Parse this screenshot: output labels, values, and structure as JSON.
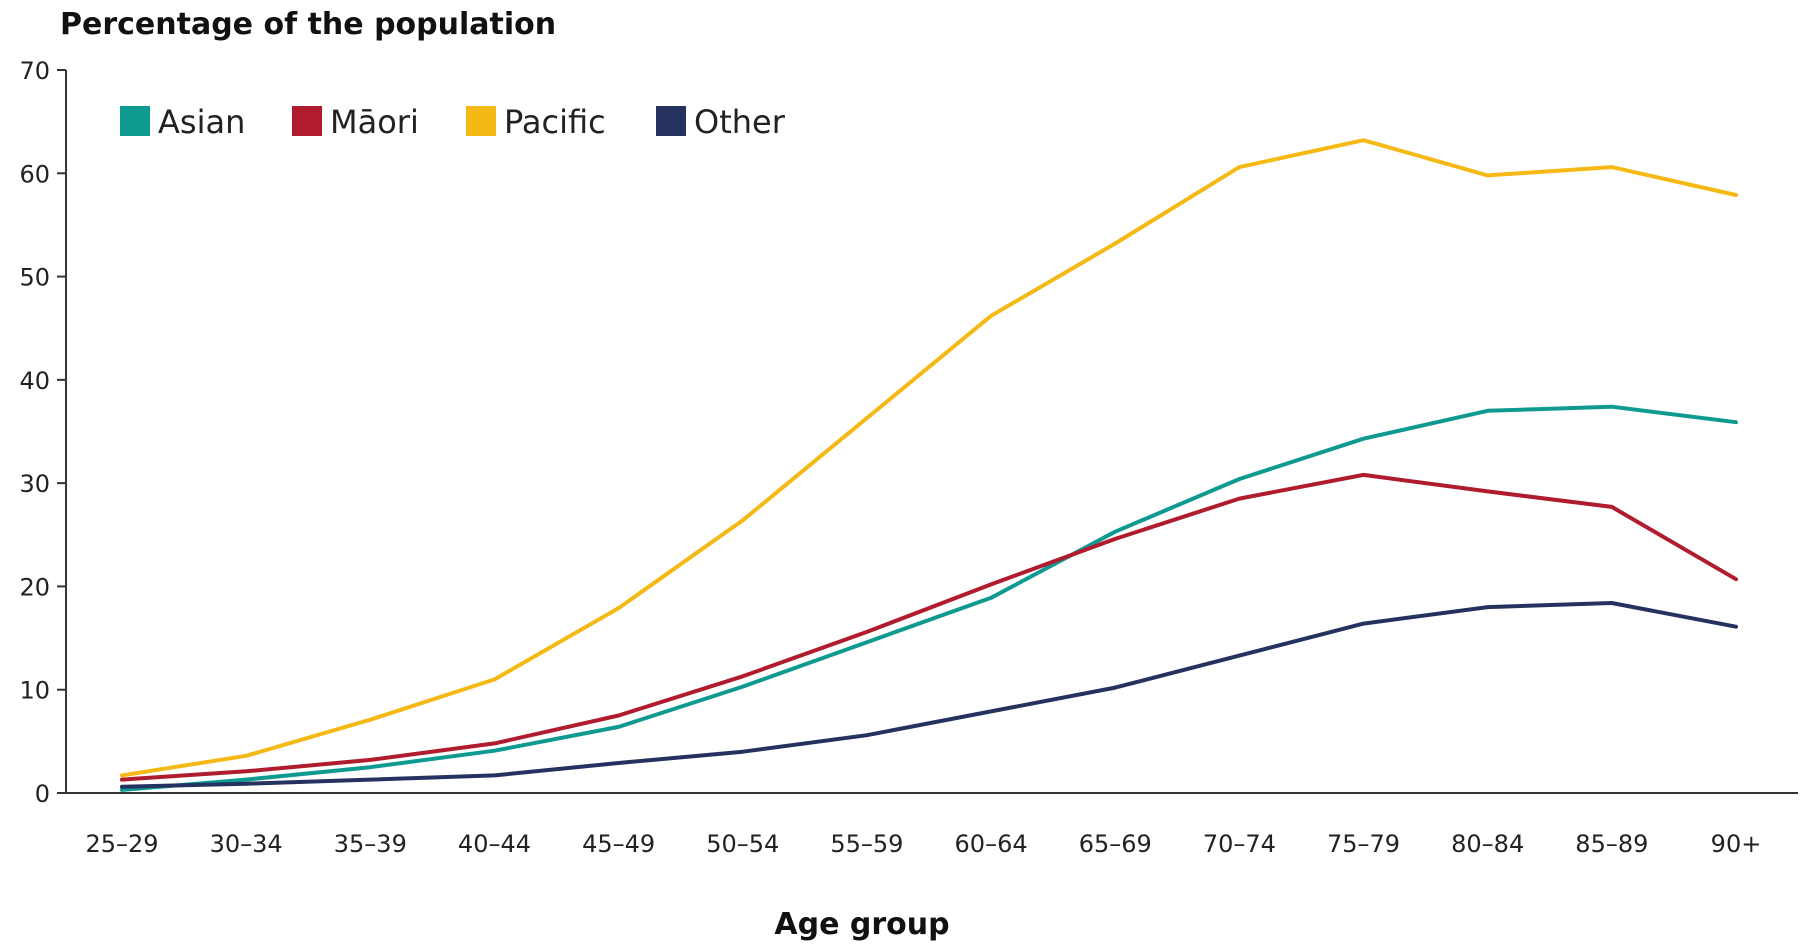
{
  "chart_data": {
    "type": "line",
    "ylabel": "Percentage of the population",
    "xlabel": "Age group",
    "ylim": [
      0,
      70
    ],
    "yticks": [
      0,
      10,
      20,
      30,
      40,
      50,
      60,
      70
    ],
    "grid": false,
    "legend_position": "top-left",
    "categories": [
      "25–29",
      "30–34",
      "35–39",
      "40–44",
      "45–49",
      "50–54",
      "55–59",
      "60–64",
      "65–69",
      "70–74",
      "75–79",
      "80–84",
      "85–89",
      "90+"
    ],
    "series": [
      {
        "name": "Asian",
        "color": "#0f9a91",
        "values": [
          0.3,
          1.3,
          2.5,
          4.1,
          6.4,
          10.3,
          14.6,
          18.9,
          25.3,
          30.4,
          34.3,
          37.0,
          37.4,
          35.9
        ]
      },
      {
        "name": "Māori",
        "color": "#b01c2e",
        "values": [
          1.3,
          2.1,
          3.2,
          4.8,
          7.5,
          11.3,
          15.6,
          20.2,
          24.6,
          28.5,
          30.8,
          29.2,
          27.7,
          20.7
        ]
      },
      {
        "name": "Pacific",
        "color": "#f5b915",
        "values": [
          1.7,
          3.6,
          7.1,
          11.0,
          17.9,
          26.4,
          36.3,
          46.2,
          53.2,
          60.6,
          63.2,
          59.8,
          60.6,
          57.9
        ]
      },
      {
        "name": "Other",
        "color": "#25325f",
        "values": [
          0.6,
          0.9,
          1.3,
          1.7,
          2.9,
          4.0,
          5.6,
          7.9,
          10.2,
          13.3,
          16.4,
          18.0,
          18.4,
          16.1
        ]
      }
    ]
  }
}
